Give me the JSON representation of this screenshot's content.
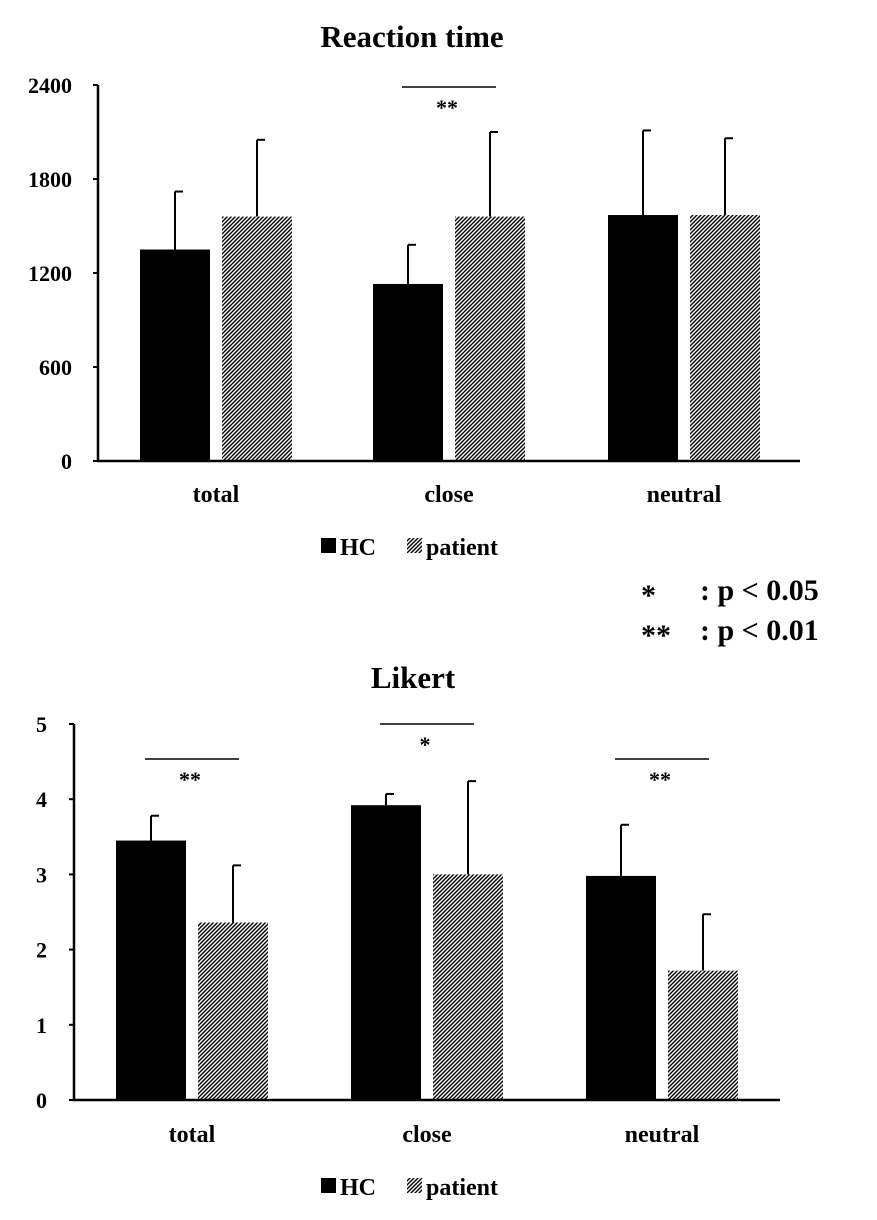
{
  "sig_key": [
    {
      "symbol": "*",
      "text": ": p < 0.05"
    },
    {
      "symbol": "**",
      "text": ": p < 0.01"
    }
  ],
  "chart_data": [
    {
      "type": "bar",
      "title": "Reaction time",
      "categories": [
        "total",
        "close",
        "neutral"
      ],
      "series": [
        {
          "name": "HC",
          "values": [
            1350,
            1130,
            1570
          ],
          "error": [
            370,
            250,
            540
          ],
          "pattern": "solid"
        },
        {
          "name": "patient",
          "values": [
            1560,
            1560,
            1570
          ],
          "error": [
            490,
            540,
            490
          ],
          "pattern": "hatched"
        }
      ],
      "ylim": [
        0,
        2400
      ],
      "yticks": [
        0,
        600,
        1200,
        1800,
        2400
      ],
      "legend": "bottom",
      "grid": false,
      "significance": [
        {
          "category": "close",
          "label": "**"
        }
      ]
    },
    {
      "type": "bar",
      "title": "Likert",
      "categories": [
        "total",
        "close",
        "neutral"
      ],
      "series": [
        {
          "name": "HC",
          "values": [
            3.45,
            3.92,
            2.98
          ],
          "error": [
            0.33,
            0.15,
            0.68
          ],
          "pattern": "solid"
        },
        {
          "name": "patient",
          "values": [
            2.36,
            3.0,
            1.72
          ],
          "error": [
            0.76,
            1.24,
            0.75
          ],
          "pattern": "hatched"
        }
      ],
      "ylim": [
        0,
        5
      ],
      "yticks": [
        0,
        1,
        2,
        3,
        4,
        5
      ],
      "legend": "bottom",
      "grid": false,
      "significance": [
        {
          "category": "total",
          "label": "**"
        },
        {
          "category": "close",
          "label": "*"
        },
        {
          "category": "neutral",
          "label": "**"
        }
      ]
    }
  ]
}
